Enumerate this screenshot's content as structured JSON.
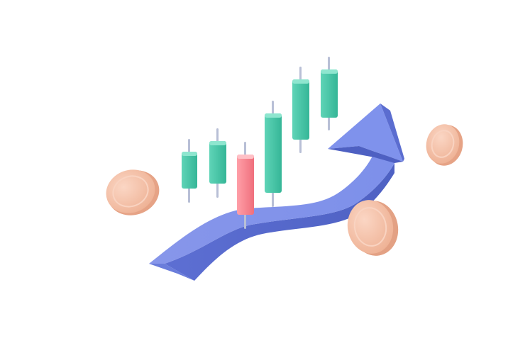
{
  "illustration": {
    "subject": "candlestick-chart-with-rising-arrow-and-coins",
    "colors": {
      "background": "#ffffff",
      "bullish_candle": "#3fbfa3",
      "bullish_candle_highlight": "#6fd9bf",
      "bearish_candle": "#f27a86",
      "bearish_candle_highlight": "#ff9aa4",
      "wick": "#b8bfd6",
      "arrow_front": "#6f86e0",
      "arrow_side": "#5367c9",
      "arrow_top": "#8ea0ee",
      "coin_face": "#f3bfa6",
      "coin_edge": "#e39f84",
      "coin_inner": "#f8cfbb"
    },
    "candles": [
      {
        "kind": "bullish"
      },
      {
        "kind": "bullish"
      },
      {
        "kind": "bearish"
      },
      {
        "kind": "bullish"
      },
      {
        "kind": "bullish"
      },
      {
        "kind": "bullish"
      }
    ],
    "coins": [
      {
        "position": "left"
      },
      {
        "position": "right-top"
      },
      {
        "position": "right-bottom"
      }
    ]
  }
}
